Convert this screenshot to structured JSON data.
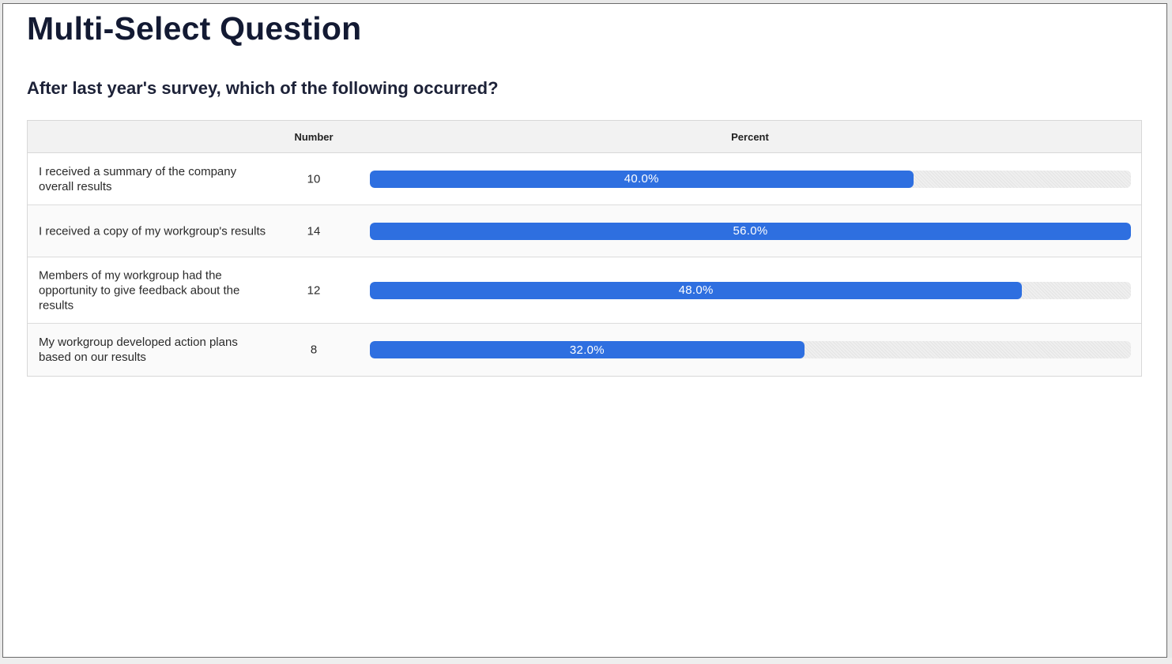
{
  "page": {
    "title": "Multi-Select Question",
    "question": "After last year's survey, which of the following occurred?"
  },
  "table": {
    "headers": {
      "label": "",
      "number": "Number",
      "percent": "Percent"
    },
    "rows": [
      {
        "label": "I received a summary of the company overall results",
        "number": "10",
        "percent_label": "40.0%",
        "fill_fraction": 0.714
      },
      {
        "label": "I received a copy of my workgroup's results",
        "number": "14",
        "percent_label": "56.0%",
        "fill_fraction": 1.0
      },
      {
        "label": "Members of my workgroup had the opportunity to give feedback about the results",
        "number": "12",
        "percent_label": "48.0%",
        "fill_fraction": 0.857
      },
      {
        "label": "My workgroup developed action plans based on our results",
        "number": "8",
        "percent_label": "32.0%",
        "fill_fraction": 0.571
      }
    ]
  },
  "colors": {
    "bar": "#2e6fe0",
    "title": "#131a33"
  }
}
